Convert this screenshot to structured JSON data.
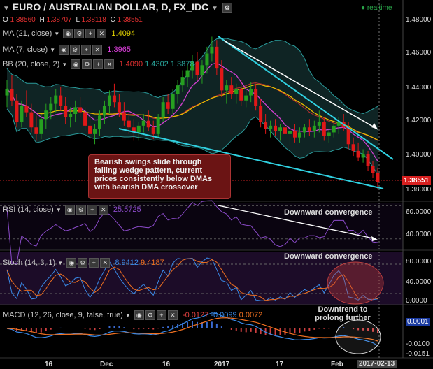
{
  "header": {
    "title": "EURO / AUSTRALIAN DOLLAR, D, FX_IDC",
    "realtime": "realtime",
    "ohlc": {
      "o_label": "O",
      "o": "1.38560",
      "h_label": "H",
      "h": "1.38707",
      "l_label": "L",
      "l": "1.38118",
      "c_label": "C",
      "c": "1.38551"
    }
  },
  "indicators": {
    "ma21": {
      "label": "MA (21, close)",
      "value": "1.4094"
    },
    "ma7": {
      "label": "MA (7, close)",
      "value": "1.3965"
    },
    "bb": {
      "label": "BB (20, close, 2)",
      "v1": "1.4090",
      "v2": "1.4302",
      "v3": "1.3878"
    },
    "rsi": {
      "label": "RSI (14, close)",
      "value": "25.5725"
    },
    "stoch": {
      "label": "Stoch (14, 3, 1)",
      "v1": "8.9412",
      "v2": "9.4187"
    },
    "macd": {
      "label": "MACD (12, 26, close, 9, false, true)",
      "v1": "-0.0127",
      "v2": "-0.0099",
      "v3": "0.0072"
    }
  },
  "annotations": {
    "main": "Bearish swings slide through falling wedge pattern, current prices consistently below DMAs with bearish DMA crossover",
    "rsi": "Downward convergence",
    "stoch": "Downward convergence",
    "macd": "Downtrend to prolong further"
  },
  "price_tag": "1.38551",
  "axes": {
    "price": [
      "1.48000",
      "1.46000",
      "1.44000",
      "1.42000",
      "1.40000",
      "1.38000"
    ],
    "rsi": [
      "60.0000",
      "40.0000"
    ],
    "stoch": [
      "80.0000",
      "40.0000",
      "0.0000"
    ],
    "macd": [
      "0.0001",
      "-0.0100",
      "-0.0151"
    ],
    "dates": [
      "16",
      "Dec",
      "16",
      "2017",
      "17",
      "Feb",
      "2017-02-13"
    ]
  },
  "colors": {
    "up": "#26a020",
    "down": "#e01818",
    "ma21": "#e8b800",
    "ma7": "#d040d0",
    "bb": "#2a9a9a",
    "rsi": "#8a4ac8",
    "stoch_k": "#3a8ae8",
    "stoch_d": "#f07020",
    "macd": "#3a8ae8",
    "signal": "#f07020",
    "hist": "#d04040"
  },
  "chart_data": {
    "type": "candlestick",
    "candles": [
      [
        1.437,
        1.446,
        1.43,
        1.441
      ],
      [
        1.441,
        1.449,
        1.431,
        1.434
      ],
      [
        1.434,
        1.438,
        1.418,
        1.421
      ],
      [
        1.421,
        1.434,
        1.418,
        1.431
      ],
      [
        1.431,
        1.44,
        1.424,
        1.427
      ],
      [
        1.427,
        1.432,
        1.415,
        1.418
      ],
      [
        1.418,
        1.425,
        1.41,
        1.414
      ],
      [
        1.414,
        1.426,
        1.411,
        1.423
      ],
      [
        1.423,
        1.432,
        1.417,
        1.428
      ],
      [
        1.428,
        1.436,
        1.423,
        1.432
      ],
      [
        1.432,
        1.441,
        1.427,
        1.437
      ],
      [
        1.437,
        1.442,
        1.428,
        1.431
      ],
      [
        1.431,
        1.436,
        1.42,
        1.424
      ],
      [
        1.424,
        1.43,
        1.418,
        1.426
      ],
      [
        1.426,
        1.434,
        1.421,
        1.43
      ],
      [
        1.43,
        1.436,
        1.424,
        1.427
      ],
      [
        1.427,
        1.43,
        1.416,
        1.419
      ],
      [
        1.419,
        1.424,
        1.411,
        1.414
      ],
      [
        1.414,
        1.42,
        1.408,
        1.417
      ],
      [
        1.417,
        1.428,
        1.413,
        1.425
      ],
      [
        1.425,
        1.434,
        1.42,
        1.431
      ],
      [
        1.431,
        1.44,
        1.426,
        1.437
      ],
      [
        1.437,
        1.444,
        1.43,
        1.433
      ],
      [
        1.433,
        1.438,
        1.424,
        1.427
      ],
      [
        1.427,
        1.433,
        1.419,
        1.422
      ],
      [
        1.422,
        1.428,
        1.414,
        1.418
      ],
      [
        1.418,
        1.423,
        1.41,
        1.415
      ],
      [
        1.415,
        1.421,
        1.41,
        1.419
      ],
      [
        1.419,
        1.426,
        1.415,
        1.422
      ],
      [
        1.422,
        1.428,
        1.416,
        1.418
      ],
      [
        1.418,
        1.422,
        1.411,
        1.414
      ],
      [
        1.414,
        1.426,
        1.412,
        1.424
      ],
      [
        1.424,
        1.436,
        1.421,
        1.433
      ],
      [
        1.433,
        1.438,
        1.426,
        1.429
      ],
      [
        1.429,
        1.441,
        1.426,
        1.438
      ],
      [
        1.438,
        1.446,
        1.432,
        1.443
      ],
      [
        1.443,
        1.452,
        1.439,
        1.448
      ],
      [
        1.448,
        1.456,
        1.442,
        1.452
      ],
      [
        1.452,
        1.461,
        1.447,
        1.457
      ],
      [
        1.457,
        1.463,
        1.446,
        1.449
      ],
      [
        1.449,
        1.458,
        1.444,
        1.455
      ],
      [
        1.455,
        1.466,
        1.45,
        1.462
      ],
      [
        1.462,
        1.472,
        1.457,
        1.466
      ],
      [
        1.466,
        1.47,
        1.449,
        1.453
      ],
      [
        1.453,
        1.458,
        1.436,
        1.44
      ],
      [
        1.44,
        1.446,
        1.432,
        1.443
      ],
      [
        1.443,
        1.448,
        1.435,
        1.438
      ],
      [
        1.438,
        1.444,
        1.432,
        1.441
      ],
      [
        1.441,
        1.446,
        1.431,
        1.434
      ],
      [
        1.434,
        1.44,
        1.43,
        1.437
      ],
      [
        1.437,
        1.445,
        1.433,
        1.441
      ],
      [
        1.441,
        1.444,
        1.428,
        1.431
      ],
      [
        1.431,
        1.435,
        1.418,
        1.421
      ],
      [
        1.421,
        1.426,
        1.414,
        1.417
      ],
      [
        1.417,
        1.422,
        1.412,
        1.419
      ],
      [
        1.419,
        1.423,
        1.413,
        1.416
      ],
      [
        1.416,
        1.42,
        1.41,
        1.418
      ],
      [
        1.418,
        1.421,
        1.411,
        1.414
      ],
      [
        1.414,
        1.418,
        1.407,
        1.416
      ],
      [
        1.416,
        1.42,
        1.409,
        1.412
      ],
      [
        1.412,
        1.418,
        1.409,
        1.415
      ],
      [
        1.415,
        1.42,
        1.412,
        1.418
      ],
      [
        1.418,
        1.423,
        1.413,
        1.416
      ],
      [
        1.416,
        1.422,
        1.412,
        1.419
      ],
      [
        1.419,
        1.428,
        1.415,
        1.421
      ],
      [
        1.421,
        1.424,
        1.41,
        1.413
      ],
      [
        1.413,
        1.417,
        1.409,
        1.415
      ],
      [
        1.415,
        1.421,
        1.412,
        1.419
      ],
      [
        1.419,
        1.424,
        1.414,
        1.421
      ],
      [
        1.421,
        1.426,
        1.416,
        1.418
      ],
      [
        1.418,
        1.421,
        1.405,
        1.408
      ],
      [
        1.408,
        1.412,
        1.401,
        1.404
      ],
      [
        1.404,
        1.409,
        1.398,
        1.4
      ],
      [
        1.4,
        1.405,
        1.397,
        1.402
      ],
      [
        1.402,
        1.404,
        1.392,
        1.395
      ],
      [
        1.395,
        1.398,
        1.388,
        1.391
      ],
      [
        1.391,
        1.394,
        1.381,
        1.3855
      ]
    ],
    "ylim": [
      1.374,
      1.488
    ]
  }
}
